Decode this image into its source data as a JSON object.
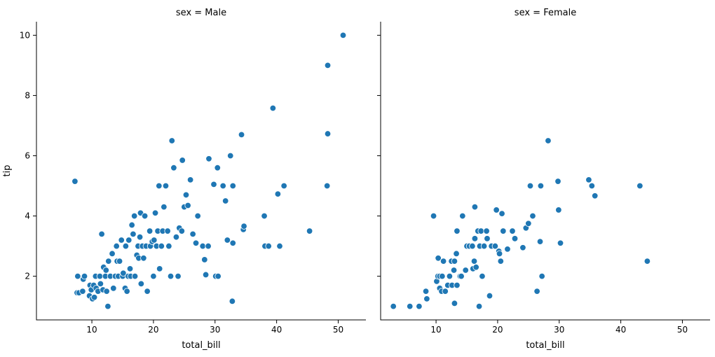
{
  "chart_data": [
    {
      "type": "scatter",
      "title": "sex = Male",
      "xlabel": "total_bill",
      "ylabel": "tip",
      "xlim": [
        1.0,
        54.5
      ],
      "ylim": [
        0.55,
        10.45
      ],
      "xticks": [
        10,
        20,
        30,
        40,
        50
      ],
      "yticks": [
        2,
        4,
        6,
        8,
        10
      ],
      "grid": false,
      "color": "#1f77b4",
      "points": [
        [
          7.25,
          5.15
        ],
        [
          7.6,
          1.45
        ],
        [
          7.7,
          2.0
        ],
        [
          7.9,
          1.45
        ],
        [
          8.5,
          1.5
        ],
        [
          8.6,
          1.9
        ],
        [
          8.8,
          2.0
        ],
        [
          9.6,
          1.35
        ],
        [
          9.7,
          1.7
        ],
        [
          9.9,
          1.55
        ],
        [
          10.1,
          1.25
        ],
        [
          10.3,
          1.7
        ],
        [
          10.4,
          1.3
        ],
        [
          10.6,
          2.0
        ],
        [
          10.7,
          1.6
        ],
        [
          11.0,
          1.5
        ],
        [
          11.3,
          2.0
        ],
        [
          11.4,
          1.75
        ],
        [
          11.6,
          3.4
        ],
        [
          11.8,
          1.55
        ],
        [
          11.9,
          2.3
        ],
        [
          12.2,
          2.0
        ],
        [
          12.3,
          2.2
        ],
        [
          12.4,
          1.5
        ],
        [
          12.6,
          1.0
        ],
        [
          12.7,
          2.5
        ],
        [
          13.0,
          2.0
        ],
        [
          13.3,
          2.75
        ],
        [
          13.5,
          1.6
        ],
        [
          13.8,
          2.0
        ],
        [
          14.0,
          3.0
        ],
        [
          14.1,
          2.5
        ],
        [
          14.3,
          2.0
        ],
        [
          14.5,
          2.5
        ],
        [
          14.8,
          3.2
        ],
        [
          15.0,
          2.0
        ],
        [
          15.1,
          2.1
        ],
        [
          15.4,
          1.6
        ],
        [
          15.5,
          3.0
        ],
        [
          15.7,
          1.5
        ],
        [
          15.9,
          2.0
        ],
        [
          16.0,
          3.2
        ],
        [
          16.2,
          2.25
        ],
        [
          16.3,
          2.0
        ],
        [
          16.5,
          3.7
        ],
        [
          16.7,
          3.4
        ],
        [
          16.9,
          4.0
        ],
        [
          17.0,
          2.0
        ],
        [
          17.3,
          2.7
        ],
        [
          17.5,
          3.0
        ],
        [
          17.6,
          2.6
        ],
        [
          17.8,
          3.3
        ],
        [
          17.9,
          4.1
        ],
        [
          18.0,
          1.75
        ],
        [
          18.2,
          3.0
        ],
        [
          18.4,
          2.6
        ],
        [
          18.6,
          4.0
        ],
        [
          18.8,
          3.0
        ],
        [
          19.0,
          1.5
        ],
        [
          19.4,
          3.5
        ],
        [
          19.5,
          3.0
        ],
        [
          19.8,
          3.15
        ],
        [
          20.0,
          2.0
        ],
        [
          20.1,
          3.2
        ],
        [
          20.3,
          4.1
        ],
        [
          20.5,
          3.0
        ],
        [
          20.7,
          3.5
        ],
        [
          20.9,
          5.0
        ],
        [
          21.0,
          2.25
        ],
        [
          21.3,
          3.0
        ],
        [
          21.5,
          3.5
        ],
        [
          21.7,
          4.3
        ],
        [
          22.0,
          5.0
        ],
        [
          22.3,
          3.5
        ],
        [
          22.5,
          3.0
        ],
        [
          22.8,
          2.0
        ],
        [
          23.0,
          6.5
        ],
        [
          23.3,
          5.6
        ],
        [
          23.7,
          3.3
        ],
        [
          24.0,
          2.0
        ],
        [
          24.2,
          3.6
        ],
        [
          24.6,
          3.5
        ],
        [
          24.7,
          5.85
        ],
        [
          25.0,
          4.3
        ],
        [
          25.3,
          4.7
        ],
        [
          25.6,
          4.35
        ],
        [
          26.0,
          5.2
        ],
        [
          26.4,
          3.4
        ],
        [
          26.9,
          3.1
        ],
        [
          27.2,
          4.0
        ],
        [
          28.0,
          3.0
        ],
        [
          28.3,
          2.55
        ],
        [
          28.5,
          2.05
        ],
        [
          28.9,
          3.0
        ],
        [
          29.0,
          5.9
        ],
        [
          29.8,
          5.05
        ],
        [
          30.1,
          2.0
        ],
        [
          30.4,
          5.6
        ],
        [
          30.5,
          2.0
        ],
        [
          31.3,
          5.0
        ],
        [
          31.7,
          4.5
        ],
        [
          32.0,
          3.2
        ],
        [
          32.5,
          6.0
        ],
        [
          32.8,
          1.17
        ],
        [
          32.9,
          3.1
        ],
        [
          32.9,
          5.0
        ],
        [
          34.3,
          6.7
        ],
        [
          34.6,
          3.55
        ],
        [
          34.7,
          3.66
        ],
        [
          38.0,
          4.0
        ],
        [
          38.1,
          3.0
        ],
        [
          38.7,
          3.0
        ],
        [
          39.4,
          7.58
        ],
        [
          40.2,
          4.73
        ],
        [
          40.5,
          3.0
        ],
        [
          41.2,
          5.0
        ],
        [
          45.35,
          3.5
        ],
        [
          48.2,
          5.0
        ],
        [
          48.3,
          6.73
        ],
        [
          48.3,
          9.0
        ],
        [
          50.8,
          10.0
        ]
      ]
    },
    {
      "type": "scatter",
      "title": "sex = Female",
      "xlabel": "total_bill",
      "ylabel": "",
      "xlim": [
        1.0,
        54.5
      ],
      "ylim": [
        0.55,
        10.45
      ],
      "xticks": [
        10,
        20,
        30,
        40,
        50
      ],
      "yticks": [
        2,
        4,
        6,
        8,
        10
      ],
      "grid": false,
      "color": "#1f77b4",
      "points": [
        [
          3.07,
          1.0
        ],
        [
          5.75,
          1.0
        ],
        [
          7.25,
          1.0
        ],
        [
          8.35,
          1.5
        ],
        [
          8.5,
          1.25
        ],
        [
          9.6,
          4.0
        ],
        [
          10.1,
          1.83
        ],
        [
          10.3,
          2.0
        ],
        [
          10.35,
          2.6
        ],
        [
          10.6,
          1.6
        ],
        [
          10.6,
          2.0
        ],
        [
          10.9,
          1.5
        ],
        [
          11.0,
          2.0
        ],
        [
          11.2,
          2.5
        ],
        [
          11.5,
          1.5
        ],
        [
          11.9,
          1.7
        ],
        [
          12.2,
          2.0
        ],
        [
          12.5,
          2.5
        ],
        [
          12.6,
          1.7
        ],
        [
          12.9,
          2.2
        ],
        [
          13.0,
          1.1
        ],
        [
          13.0,
          2.5
        ],
        [
          13.3,
          2.75
        ],
        [
          13.4,
          3.5
        ],
        [
          13.4,
          1.7
        ],
        [
          13.9,
          2.0
        ],
        [
          14.1,
          2.0
        ],
        [
          14.3,
          4.0
        ],
        [
          14.8,
          2.2
        ],
        [
          15.0,
          3.0
        ],
        [
          15.4,
          3.0
        ],
        [
          15.9,
          3.0
        ],
        [
          16.0,
          2.25
        ],
        [
          16.2,
          2.5
        ],
        [
          16.3,
          3.25
        ],
        [
          16.3,
          4.3
        ],
        [
          16.5,
          2.3
        ],
        [
          16.8,
          3.5
        ],
        [
          17.0,
          1.0
        ],
        [
          17.1,
          3.0
        ],
        [
          17.3,
          3.5
        ],
        [
          17.5,
          2.0
        ],
        [
          17.8,
          3.0
        ],
        [
          18.2,
          3.5
        ],
        [
          18.3,
          3.25
        ],
        [
          18.7,
          1.35
        ],
        [
          19.0,
          3.0
        ],
        [
          19.6,
          3.0
        ],
        [
          19.8,
          4.2
        ],
        [
          20.2,
          2.83
        ],
        [
          20.3,
          2.75
        ],
        [
          20.5,
          2.5
        ],
        [
          20.7,
          4.08
        ],
        [
          20.9,
          3.5
        ],
        [
          21.6,
          2.9
        ],
        [
          22.4,
          3.5
        ],
        [
          22.8,
          3.25
        ],
        [
          24.1,
          2.95
        ],
        [
          24.6,
          3.6
        ],
        [
          25.0,
          3.75
        ],
        [
          25.3,
          5.0
        ],
        [
          25.7,
          4.0
        ],
        [
          26.4,
          1.5
        ],
        [
          26.9,
          3.15
        ],
        [
          27.0,
          5.0
        ],
        [
          27.2,
          2.0
        ],
        [
          28.2,
          6.5
        ],
        [
          29.8,
          5.15
        ],
        [
          29.9,
          4.2
        ],
        [
          30.2,
          3.1
        ],
        [
          34.8,
          5.2
        ],
        [
          35.3,
          5.0
        ],
        [
          35.8,
          4.67
        ],
        [
          43.1,
          5.0
        ],
        [
          44.3,
          2.5
        ]
      ]
    }
  ]
}
